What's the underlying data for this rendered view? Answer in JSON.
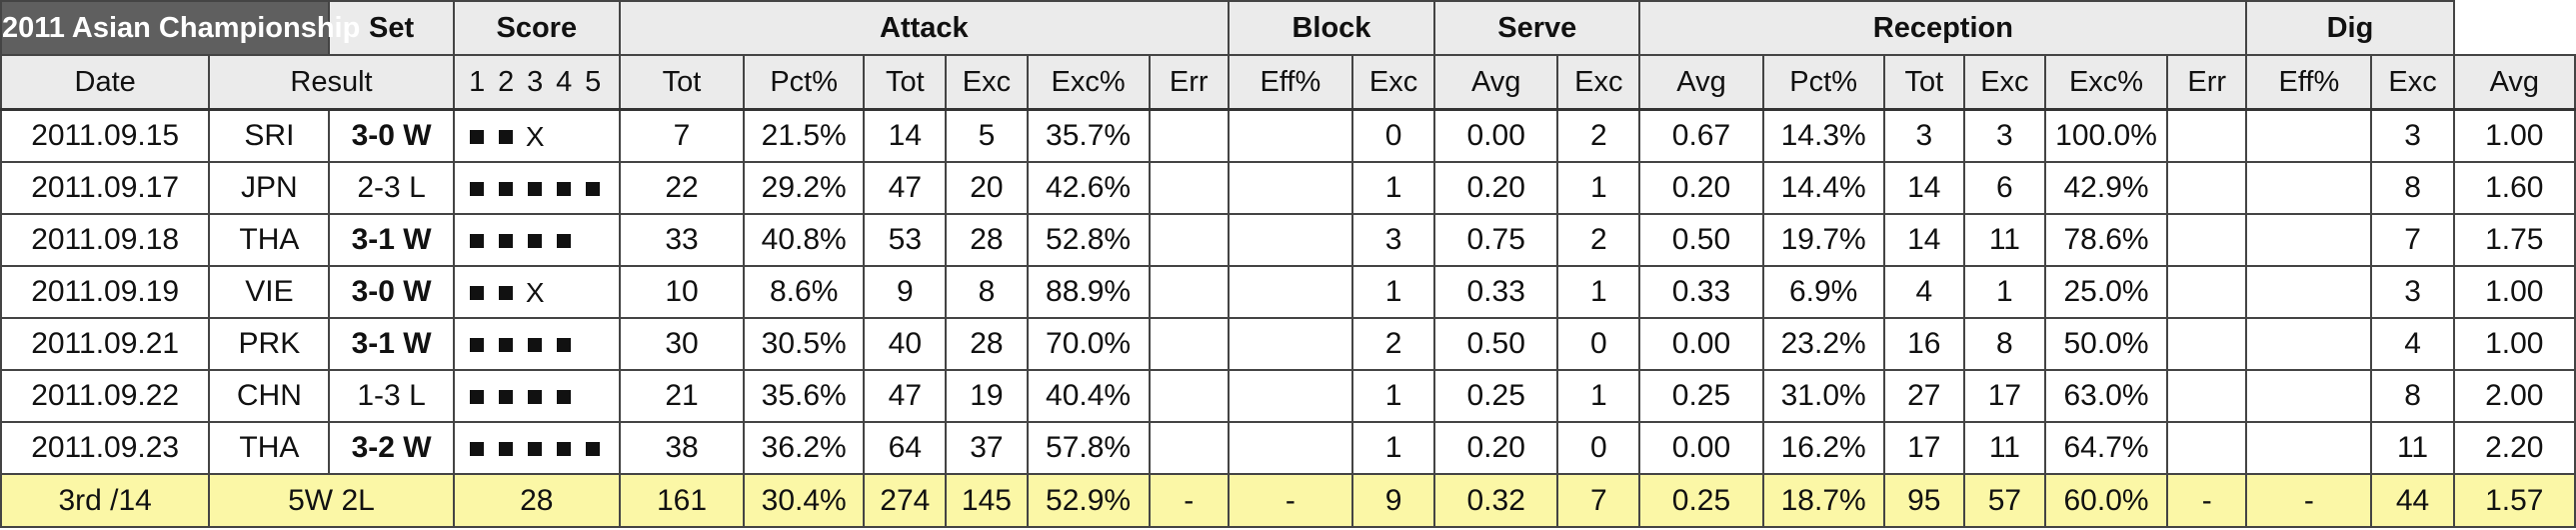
{
  "header": {
    "title": "2011 Asian Championship",
    "groups": [
      "Set",
      "Score",
      "Attack",
      "Block",
      "Serve",
      "Reception",
      "Dig"
    ]
  },
  "subheader": {
    "date": "Date",
    "result": "Result",
    "sets": [
      "1",
      "2",
      "3",
      "4",
      "5"
    ],
    "score_tot": "Tot",
    "attack": [
      "Pct%",
      "Tot",
      "Exc",
      "Exc%",
      "Err",
      "Eff%"
    ],
    "block": [
      "Exc",
      "Avg"
    ],
    "serve": [
      "Exc",
      "Avg"
    ],
    "reception": [
      "Pct%",
      "Tot",
      "Exc",
      "Exc%",
      "Err",
      "Eff%"
    ],
    "dig": [
      "Exc",
      "Avg"
    ]
  },
  "rows": [
    {
      "date": "2011.09.15",
      "opp": "SRI",
      "result": "3-0 W",
      "win": true,
      "sets": "■■X",
      "score": "7",
      "att_pct": "21.5%",
      "att_tot": "14",
      "att_exc": "5",
      "att_excp": "35.7%",
      "att_err": "",
      "att_eff": "",
      "blk_exc": "0",
      "blk_avg": "0.00",
      "srv_exc": "2",
      "srv_avg": "0.67",
      "rec_pct": "14.3%",
      "rec_tot": "3",
      "rec_exc": "3",
      "rec_excp": "100.0%",
      "rec_err": "",
      "rec_eff": "",
      "dig_exc": "3",
      "dig_avg": "1.00"
    },
    {
      "date": "2011.09.17",
      "opp": "JPN",
      "result": "2-3 L",
      "win": false,
      "sets": "■■■■■",
      "score": "22",
      "att_pct": "29.2%",
      "att_tot": "47",
      "att_exc": "20",
      "att_excp": "42.6%",
      "att_err": "",
      "att_eff": "",
      "blk_exc": "1",
      "blk_avg": "0.20",
      "srv_exc": "1",
      "srv_avg": "0.20",
      "rec_pct": "14.4%",
      "rec_tot": "14",
      "rec_exc": "6",
      "rec_excp": "42.9%",
      "rec_err": "",
      "rec_eff": "",
      "dig_exc": "8",
      "dig_avg": "1.60"
    },
    {
      "date": "2011.09.18",
      "opp": "THA",
      "result": "3-1 W",
      "win": true,
      "sets": "■■■■",
      "score": "33",
      "att_pct": "40.8%",
      "att_tot": "53",
      "att_exc": "28",
      "att_excp": "52.8%",
      "att_err": "",
      "att_eff": "",
      "blk_exc": "3",
      "blk_avg": "0.75",
      "srv_exc": "2",
      "srv_avg": "0.50",
      "rec_pct": "19.7%",
      "rec_tot": "14",
      "rec_exc": "11",
      "rec_excp": "78.6%",
      "rec_err": "",
      "rec_eff": "",
      "dig_exc": "7",
      "dig_avg": "1.75"
    },
    {
      "date": "2011.09.19",
      "opp": "VIE",
      "result": "3-0 W",
      "win": true,
      "sets": "■■X",
      "score": "10",
      "att_pct": "8.6%",
      "att_tot": "9",
      "att_exc": "8",
      "att_excp": "88.9%",
      "att_err": "",
      "att_eff": "",
      "blk_exc": "1",
      "blk_avg": "0.33",
      "srv_exc": "1",
      "srv_avg": "0.33",
      "rec_pct": "6.9%",
      "rec_tot": "4",
      "rec_exc": "1",
      "rec_excp": "25.0%",
      "rec_err": "",
      "rec_eff": "",
      "dig_exc": "3",
      "dig_avg": "1.00"
    },
    {
      "date": "2011.09.21",
      "opp": "PRK",
      "result": "3-1 W",
      "win": true,
      "sets": "■■■■",
      "score": "30",
      "att_pct": "30.5%",
      "att_tot": "40",
      "att_exc": "28",
      "att_excp": "70.0%",
      "att_err": "",
      "att_eff": "",
      "blk_exc": "2",
      "blk_avg": "0.50",
      "srv_exc": "0",
      "srv_avg": "0.00",
      "rec_pct": "23.2%",
      "rec_tot": "16",
      "rec_exc": "8",
      "rec_excp": "50.0%",
      "rec_err": "",
      "rec_eff": "",
      "dig_exc": "4",
      "dig_avg": "1.00"
    },
    {
      "date": "2011.09.22",
      "opp": "CHN",
      "result": "1-3 L",
      "win": false,
      "sets": "■■■■",
      "score": "21",
      "att_pct": "35.6%",
      "att_tot": "47",
      "att_exc": "19",
      "att_excp": "40.4%",
      "att_err": "",
      "att_eff": "",
      "blk_exc": "1",
      "blk_avg": "0.25",
      "srv_exc": "1",
      "srv_avg": "0.25",
      "rec_pct": "31.0%",
      "rec_tot": "27",
      "rec_exc": "17",
      "rec_excp": "63.0%",
      "rec_err": "",
      "rec_eff": "",
      "dig_exc": "8",
      "dig_avg": "2.00"
    },
    {
      "date": "2011.09.23",
      "opp": "THA",
      "result": "3-2 W",
      "win": true,
      "sets": "■■■■■",
      "score": "38",
      "att_pct": "36.2%",
      "att_tot": "64",
      "att_exc": "37",
      "att_excp": "57.8%",
      "att_err": "",
      "att_eff": "",
      "blk_exc": "1",
      "blk_avg": "0.20",
      "srv_exc": "0",
      "srv_avg": "0.00",
      "rec_pct": "16.2%",
      "rec_tot": "17",
      "rec_exc": "11",
      "rec_excp": "64.7%",
      "rec_err": "",
      "rec_eff": "",
      "dig_exc": "11",
      "dig_avg": "2.20"
    }
  ],
  "totals": {
    "rank": "3rd /14",
    "record": "5W 2L",
    "sets": "28",
    "score": "161",
    "att_pct": "30.4%",
    "att_tot": "274",
    "att_exc": "145",
    "att_excp": "52.9%",
    "att_err": "-",
    "att_eff": "-",
    "blk_exc": "9",
    "blk_avg": "0.32",
    "srv_exc": "7",
    "srv_avg": "0.25",
    "rec_pct": "18.7%",
    "rec_tot": "95",
    "rec_exc": "57",
    "rec_excp": "60.0%",
    "rec_err": "-",
    "rec_eff": "-",
    "dig_exc": "44",
    "dig_avg": "1.57"
  },
  "colors": {
    "title_bg": "#5f5f5f",
    "header_bg": "#ebebeb",
    "totals_bg": "#fbf7a6"
  }
}
